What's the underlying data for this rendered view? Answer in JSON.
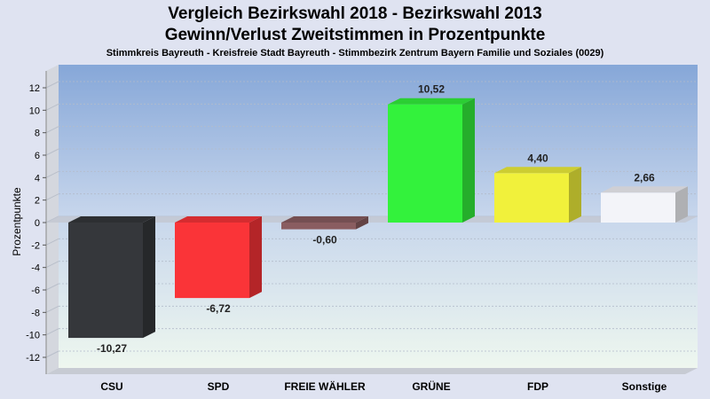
{
  "chart_data": {
    "type": "bar",
    "title": "Vergleich Bezirkswahl 2018 - Bezirkswahl 2013",
    "subtitle": "Gewinn/Verlust Zweitstimmen in Prozentpunkte",
    "caption": "Stimmkreis Bayreuth - Kreisfreie Stadt Bayreuth - Stimmbezirk Zentrum Bayern Familie und Soziales (0029)",
    "xlabel": "",
    "ylabel": "Prozentpunkte",
    "ylim": [
      -13.5,
      13.5
    ],
    "yticks": [
      12,
      10,
      8,
      6,
      4,
      2,
      0,
      -2,
      -4,
      -6,
      -8,
      -10,
      -12
    ],
    "grid": true,
    "categories": [
      "CSU",
      "SPD",
      "FREIE WÄHLER",
      "GRÜNE",
      "FDP",
      "Sonstige"
    ],
    "values": [
      -10.27,
      -6.72,
      -0.6,
      10.52,
      4.4,
      2.66
    ],
    "value_labels": [
      "-10,27",
      "-6,72",
      "-0,60",
      "10,52",
      "4,40",
      "2,66"
    ],
    "colors": [
      "#35373b",
      "#fa3438",
      "#8a5d60",
      "#33f23c",
      "#f1f13b",
      "#f3f4f9"
    ]
  }
}
